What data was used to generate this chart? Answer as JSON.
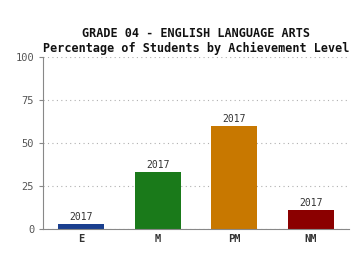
{
  "title_line1": "GRADE 04 - ENGLISH LANGUAGE ARTS",
  "title_line2": "Percentage of Students by Achievement Level",
  "categories": [
    "E",
    "M",
    "PM",
    "NM"
  ],
  "values": [
    3,
    33,
    60,
    11
  ],
  "bar_colors": [
    "#1a3f8f",
    "#1a7a1a",
    "#c87800",
    "#8b0000"
  ],
  "bar_labels": [
    "2017",
    "2017",
    "2017",
    "2017"
  ],
  "ylim": [
    0,
    100
  ],
  "yticks": [
    0,
    25,
    50,
    75,
    100
  ],
  "background_color": "#ffffff",
  "grid_color": "#b0b0b0",
  "title_fontsize": 8.5,
  "bar_label_fontsize": 7,
  "tick_fontsize": 7.5,
  "bar_width": 0.6
}
